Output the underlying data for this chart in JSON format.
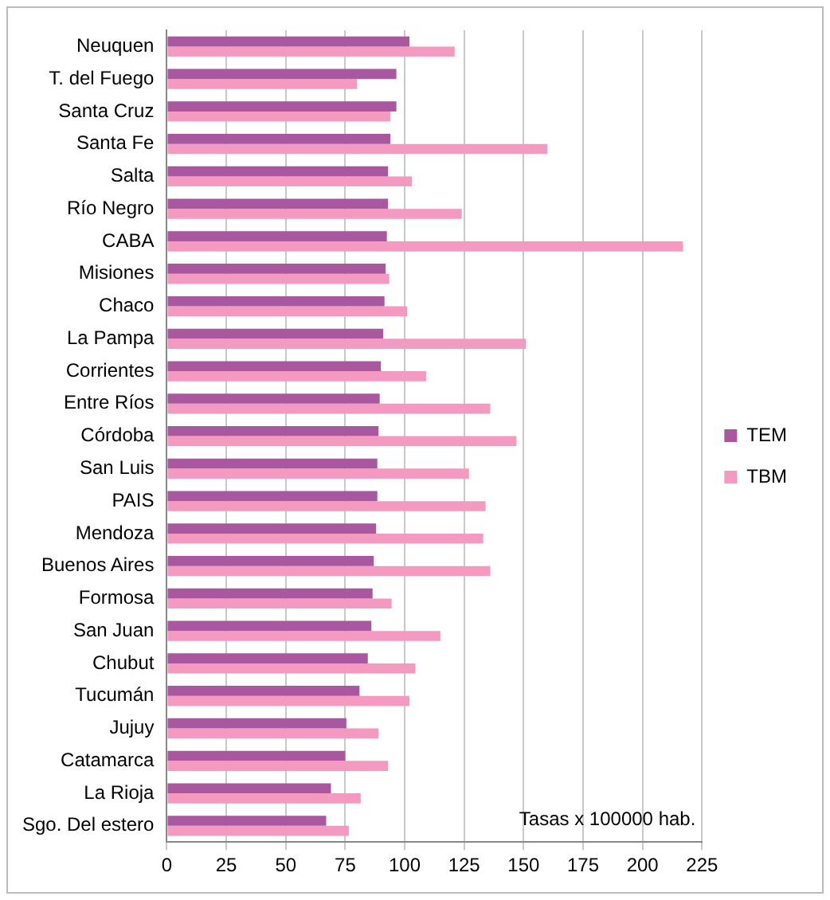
{
  "chart_data": {
    "type": "bar",
    "orientation": "horizontal",
    "categories": [
      "Neuquen",
      "T. del Fuego",
      "Santa Cruz",
      "Santa Fe",
      "Salta",
      "Río Negro",
      "CABA",
      "Misiones",
      "Chaco",
      "La Pampa",
      "Corrientes",
      "Entre Ríos",
      "Córdoba",
      "San Luis",
      "PAIS",
      "Mendoza",
      "Buenos Aires",
      "Formosa",
      "San Juan",
      "Chubut",
      "Tucumán",
      "Jujuy",
      "Catamarca",
      "La Rioja",
      "Sgo. Del estero"
    ],
    "series": [
      {
        "name": "TEM",
        "color": "#a9579f",
        "values": [
          102,
          96.5,
          96.5,
          94,
          93,
          93,
          92.5,
          92,
          91.5,
          91,
          90,
          89.5,
          89,
          88.5,
          88.5,
          88,
          87,
          86.5,
          86,
          84.5,
          81,
          75.5,
          75,
          69,
          67
        ]
      },
      {
        "name": "TBM",
        "color": "#f49ac1",
        "values": [
          121,
          80,
          94,
          160,
          103,
          124,
          217,
          93.5,
          101,
          151,
          109,
          136,
          147,
          127,
          134,
          133,
          136,
          94.5,
          115,
          104.5,
          102,
          89,
          93,
          81.5,
          76.5
        ]
      }
    ],
    "xlim": [
      0,
      225
    ],
    "xticks": [
      0,
      25,
      50,
      75,
      100,
      125,
      150,
      175,
      200,
      225
    ],
    "grid": "x",
    "legend": "right",
    "annotations": [
      "Tasas x 100000 hab."
    ]
  }
}
